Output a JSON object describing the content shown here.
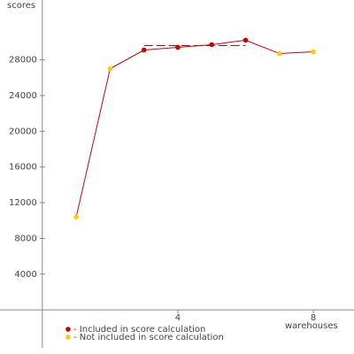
{
  "chart_data": {
    "type": "line",
    "y_label": "scores",
    "x_label": "warehouses",
    "x": [
      1,
      2,
      3,
      4,
      5,
      6,
      7,
      8
    ],
    "values": [
      10400,
      27000,
      29100,
      29400,
      29700,
      30200,
      28700,
      28900
    ],
    "included": [
      false,
      false,
      true,
      true,
      true,
      true,
      false,
      false
    ],
    "line_color": "#cc0000",
    "score_line": {
      "value": 29600,
      "x": [
        3,
        6
      ],
      "color": "#cc0000"
    },
    "legend": [
      {
        "label": "- Included in score calculation",
        "color": "#cc0000"
      },
      {
        "label": "- Not included in score calculation",
        "color": "#ffcc00"
      }
    ],
    "xlim": [
      -1.25,
      9.2
    ],
    "xticks": [
      4,
      8
    ],
    "ylim": [
      -4250,
      34700
    ],
    "yticks": [
      4000,
      8000,
      12000,
      16000,
      20000,
      24000,
      28000
    ]
  }
}
